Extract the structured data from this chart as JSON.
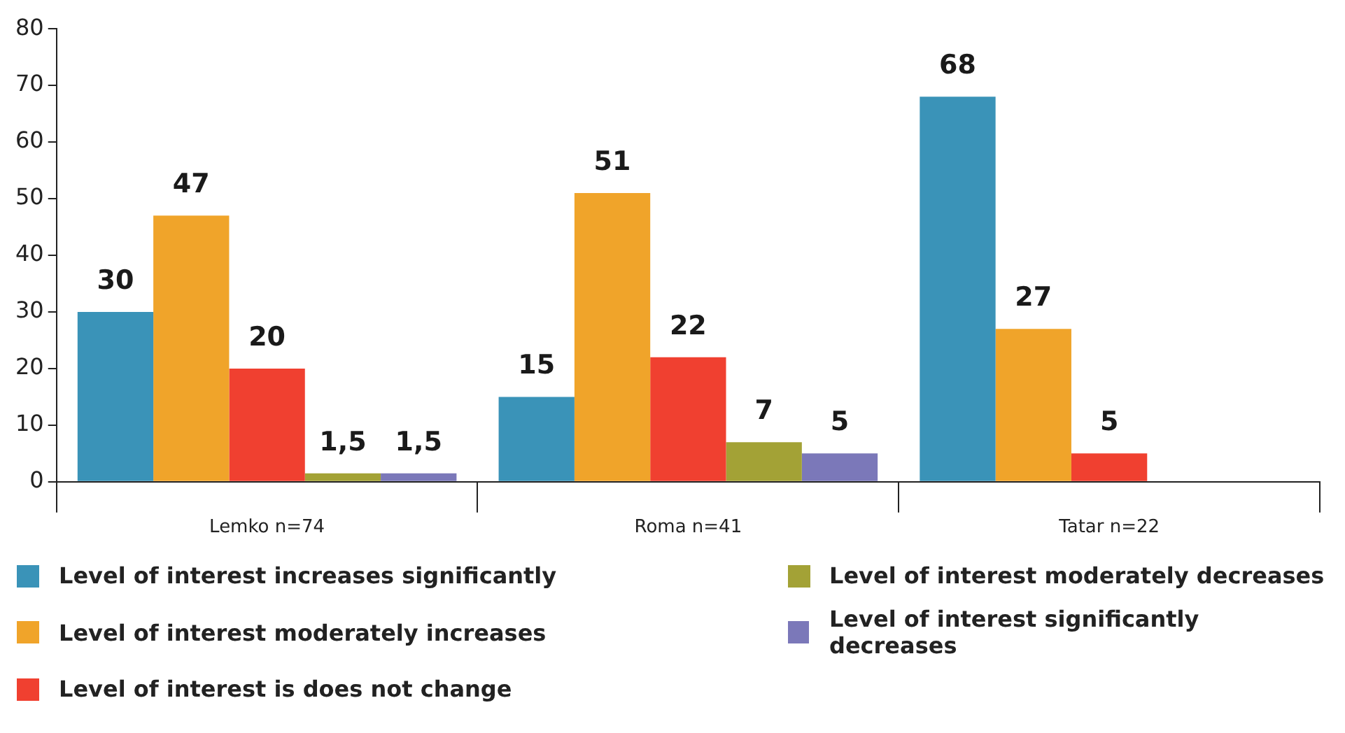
{
  "chart_data": {
    "type": "bar",
    "categories": [
      "Lemko n=74",
      "Roma n=41",
      "Tatar n=22"
    ],
    "series": [
      {
        "name": "Level of interest increases significantly",
        "color": "#3a93b8",
        "values": [
          30,
          15,
          68
        ],
        "value_labels": [
          "30",
          "15",
          "68"
        ]
      },
      {
        "name": "Level of interest moderately increases",
        "color": "#f0a42a",
        "values": [
          47,
          51,
          27
        ],
        "value_labels": [
          "47",
          "51",
          "27"
        ]
      },
      {
        "name": "Level of interest is does not change",
        "color": "#f04030",
        "values": [
          20,
          22,
          5
        ],
        "value_labels": [
          "20",
          "22",
          "5"
        ]
      },
      {
        "name": "Level of interest moderately decreases",
        "color": "#a3a236",
        "values": [
          1.5,
          7,
          null
        ],
        "value_labels": [
          "1,5",
          "7",
          null
        ]
      },
      {
        "name": "Level of interest significantly decreases",
        "color": "#7b78b9",
        "values": [
          1.5,
          5,
          null
        ],
        "value_labels": [
          "1,5",
          "5",
          null
        ]
      }
    ],
    "ylim": [
      0,
      80
    ],
    "yticks": [
      0,
      10,
      20,
      30,
      40,
      50,
      60,
      70,
      80
    ],
    "grid": false,
    "legend": "bottom"
  }
}
